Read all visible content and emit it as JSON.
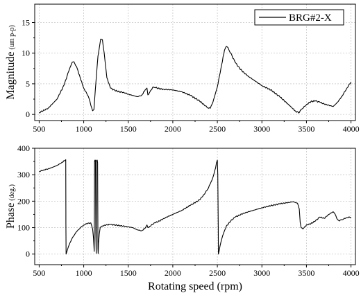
{
  "chart_data": [
    {
      "type": "line",
      "ylabel": "Magnitude",
      "yunit": "(um p-p)",
      "xlim": [
        450,
        4050
      ],
      "ylim": [
        -1,
        18
      ],
      "xticks": [
        500,
        1000,
        1500,
        2000,
        2500,
        3000,
        3500,
        4000
      ],
      "xtick_labels": [
        "500",
        "1000",
        "1500",
        "2000",
        "2500",
        "3000",
        "3500",
        "4000"
      ],
      "yticks": [
        0,
        5,
        10,
        15
      ],
      "ytick_labels": [
        "0",
        "5",
        "10",
        "15"
      ],
      "grid": true,
      "legend": "top-right",
      "series": [
        {
          "name": "BRG#2-X",
          "color": "#000000",
          "x": [
            500,
            600,
            700,
            780,
            830,
            870,
            890,
            920,
            960,
            1000,
            1050,
            1080,
            1100,
            1115,
            1130,
            1160,
            1190,
            1210,
            1230,
            1260,
            1300,
            1350,
            1400,
            1450,
            1500,
            1550,
            1600,
            1650,
            1690,
            1710,
            1720,
            1740,
            1780,
            1800,
            1850,
            1900,
            2000,
            2100,
            2200,
            2300,
            2350,
            2400,
            2420,
            2450,
            2500,
            2540,
            2580,
            2600,
            2620,
            2650,
            2700,
            2750,
            2800,
            2850,
            2900,
            2950,
            3000,
            3100,
            3200,
            3300,
            3380,
            3420,
            3450,
            3500,
            3550,
            3600,
            3650,
            3700,
            3800,
            3850,
            3900,
            3950,
            4000
          ],
          "y": [
            0.3,
            1.0,
            2.5,
            4.8,
            7.0,
            8.5,
            8.6,
            7.8,
            6.0,
            4.3,
            3.0,
            1.5,
            0.6,
            0.8,
            4.0,
            9.5,
            12.3,
            12.2,
            10.0,
            6.0,
            4.3,
            3.9,
            3.7,
            3.6,
            3.3,
            3.1,
            2.9,
            3.1,
            4.0,
            4.3,
            3.2,
            3.6,
            4.5,
            4.4,
            4.2,
            4.1,
            4.0,
            3.7,
            3.1,
            2.2,
            1.6,
            1.0,
            1.0,
            2.0,
            4.5,
            7.5,
            10.5,
            11.1,
            10.9,
            10.0,
            8.5,
            7.5,
            6.8,
            6.2,
            5.7,
            5.2,
            4.7,
            4.0,
            2.9,
            1.6,
            0.5,
            0.3,
            0.9,
            1.6,
            2.1,
            2.2,
            2.0,
            1.7,
            1.3,
            2.0,
            3.0,
            4.2,
            5.3
          ]
        }
      ]
    },
    {
      "type": "line",
      "ylabel": "Phase",
      "yunit": "(deg.)",
      "xlabel": "Rotating speed (rpm)",
      "xlim": [
        450,
        4050
      ],
      "ylim": [
        -40,
        400
      ],
      "xticks": [
        500,
        1000,
        1500,
        2000,
        2500,
        3000,
        3500,
        4000
      ],
      "xtick_labels": [
        "500",
        "1000",
        "1500",
        "2000",
        "2500",
        "3000",
        "3500",
        "4000"
      ],
      "yticks": [
        0,
        100,
        200,
        300,
        400
      ],
      "ytick_labels": [
        "0",
        "100",
        "200",
        "300",
        "400"
      ],
      "grid": true,
      "series": [
        {
          "name": "",
          "color": "#000000",
          "x": [
            500,
            550,
            600,
            650,
            700,
            750,
            798,
            800,
            800,
            802,
            830,
            870,
            920,
            980,
            1030,
            1080,
            1100,
            1110,
            1118,
            1122,
            1125,
            1128,
            1132,
            1136,
            1140,
            1144,
            1148,
            1152,
            1156,
            1160,
            1162,
            1166,
            1175,
            1185,
            1200,
            1250,
            1300,
            1400,
            1500,
            1550,
            1600,
            1650,
            1690,
            1710,
            1720,
            1740,
            1760,
            1800,
            1850,
            1900,
            2000,
            2100,
            2200,
            2300,
            2350,
            2400,
            2420,
            2440,
            2460,
            2480,
            2490,
            2500,
            2505,
            2510,
            2512,
            2530,
            2560,
            2600,
            2650,
            2700,
            2800,
            2900,
            3000,
            3100,
            3200,
            3300,
            3350,
            3400,
            3420,
            3430,
            3440,
            3460,
            3500,
            3550,
            3600,
            3650,
            3700,
            3750,
            3800,
            3830,
            3840,
            3850,
            3870,
            3900,
            3950,
            4000
          ],
          "y": [
            312,
            318,
            322,
            328,
            335,
            345,
            357,
            160,
            120,
            0,
            30,
            60,
            85,
            105,
            115,
            118,
            95,
            60,
            10,
            350,
            355,
            350,
            355,
            80,
            3,
            355,
            350,
            355,
            345,
            20,
            2,
            40,
            75,
            100,
            105,
            110,
            112,
            108,
            103,
            100,
            92,
            88,
            98,
            110,
            100,
            105,
            110,
            118,
            125,
            135,
            150,
            165,
            185,
            205,
            225,
            250,
            265,
            280,
            300,
            325,
            345,
            355,
            300,
            100,
            0,
            30,
            70,
            105,
            125,
            140,
            155,
            165,
            175,
            183,
            190,
            195,
            198,
            192,
            170,
            120,
            100,
            95,
            110,
            115,
            125,
            140,
            135,
            150,
            160,
            145,
            135,
            130,
            125,
            130,
            138,
            140
          ]
        }
      ]
    }
  ]
}
